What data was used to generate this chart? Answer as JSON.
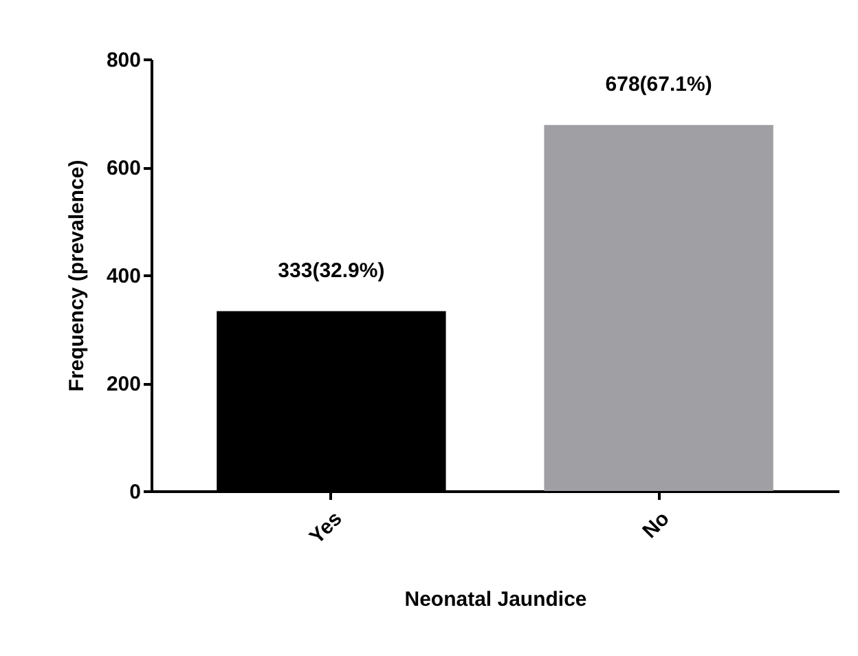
{
  "chart_data": {
    "type": "bar",
    "xlabel": "Neonatal Jaundice",
    "ylabel": "Frequency (prevalence)",
    "categories": [
      "Yes",
      "No"
    ],
    "values": [
      333,
      678
    ],
    "colors": [
      "#000000",
      "#a0a0a4"
    ],
    "value_labels": [
      "333(32.9%)",
      "678(67.1%)"
    ],
    "ylim": [
      0,
      800
    ],
    "yticks": [
      0,
      200,
      400,
      600,
      800
    ]
  }
}
